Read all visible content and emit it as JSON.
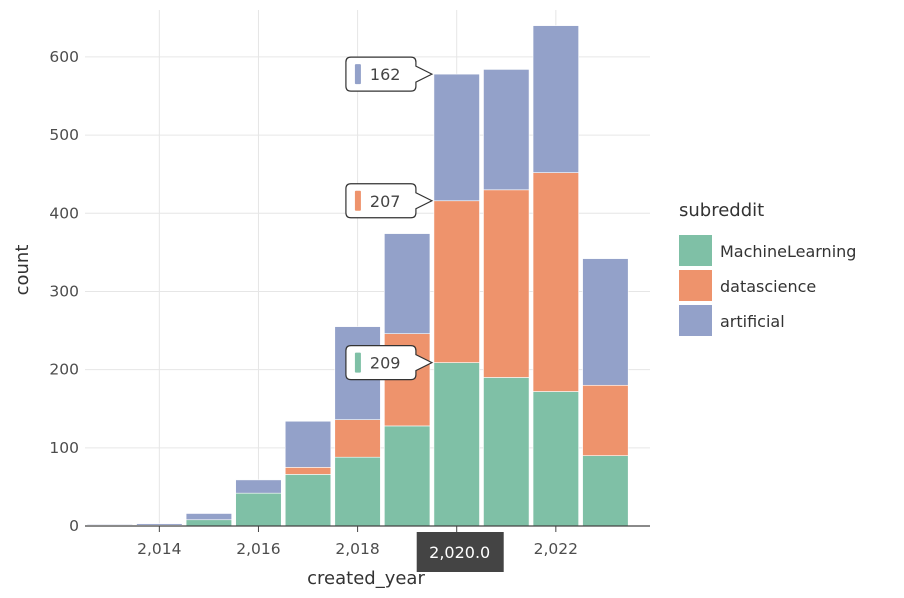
{
  "chart_data": {
    "type": "bar",
    "stacked": true,
    "xlabel": "created_year",
    "ylabel": "count",
    "x": [
      2013,
      2014,
      2015,
      2016,
      2017,
      2018,
      2019,
      2020,
      2021,
      2022,
      2023
    ],
    "xlim": [
      2012.5,
      2023.9
    ],
    "ylim": [
      0,
      660
    ],
    "x_ticks": [
      2014,
      2016,
      2018,
      2020,
      2022
    ],
    "x_tick_labels": [
      "2,014",
      "2,016",
      "2,018",
      "2,020",
      "2,022"
    ],
    "y_ticks": [
      0,
      100,
      200,
      300,
      400,
      500,
      600
    ],
    "y_tick_labels": [
      "0",
      "100",
      "200",
      "300",
      "400",
      "500",
      "600"
    ],
    "grid": true,
    "legend": {
      "title": "subreddit",
      "position": "right"
    },
    "series": [
      {
        "name": "MachineLearning",
        "color": "#7fc0a6",
        "values": [
          1,
          1,
          8,
          42,
          66,
          88,
          128,
          209,
          190,
          172,
          90
        ]
      },
      {
        "name": "datascience",
        "color": "#ee936c",
        "values": [
          0,
          0,
          0,
          0,
          9,
          48,
          118,
          207,
          240,
          280,
          90
        ]
      },
      {
        "name": "artificial",
        "color": "#93a1c9",
        "values": [
          1,
          2,
          8,
          17,
          59,
          119,
          128,
          162,
          154,
          188,
          162
        ]
      }
    ],
    "hover": {
      "x_label": "2,020.0",
      "tooltips": [
        {
          "series": "artificial",
          "label": "162",
          "color": "#93a1c9"
        },
        {
          "series": "datascience",
          "label": "207",
          "color": "#ee936c"
        },
        {
          "series": "MachineLearning",
          "label": "209",
          "color": "#7fc0a6"
        }
      ]
    }
  }
}
